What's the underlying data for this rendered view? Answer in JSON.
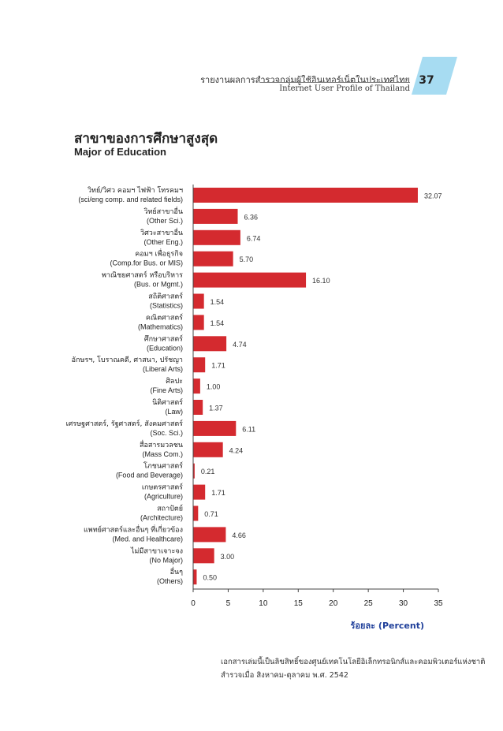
{
  "header": {
    "thai_title": "รายงานผลการสำรวจกลุ่มผู้ใช้อินเทอร์เน็ตในประเทศไทย",
    "english_title": "Internet User Profile of Thailand",
    "page_number": "37",
    "tab_color": "#a7dcf2"
  },
  "section": {
    "title_thai": "สาขาของการศึกษาสูงสุด",
    "title_english": "Major of Education"
  },
  "chart_data": {
    "type": "bar",
    "orientation": "horizontal",
    "categories": [
      {
        "th": "วิทย์/วิศว คอมฯ ไฟฟ้า โทรคมฯ",
        "en": "(sci/eng comp. and related fields)"
      },
      {
        "th": "วิทย์สาขาอื่น",
        "en": "(Other Sci.)"
      },
      {
        "th": "วิศวะสาขาอื่น",
        "en": "(Other Eng.)"
      },
      {
        "th": "คอมฯ เพื่อธุรกิจ",
        "en": "(Comp.for Bus. or MIS)"
      },
      {
        "th": "พาณิชยศาสตร์ หรือบริหาร",
        "en": "(Bus. or Mgmt.)"
      },
      {
        "th": "สถิติศาสตร์",
        "en": "(Statistics)"
      },
      {
        "th": "คณิตศาสตร์",
        "en": "(Mathematics)"
      },
      {
        "th": "ศึกษาศาสตร์",
        "en": "(Education)"
      },
      {
        "th": "อักษรฯ, โบราณคดี, ศาสนา, ปรัชญา",
        "en": "(Liberal Arts)"
      },
      {
        "th": "ศิลปะ",
        "en": "(Fine Arts)"
      },
      {
        "th": "นิติศาสตร์",
        "en": "(Law)"
      },
      {
        "th": "เศรษฐศาสตร์, รัฐศาสตร์, สังคมศาสตร์",
        "en": "(Soc. Sci.)"
      },
      {
        "th": "สื่อสารมวลชน",
        "en": "(Mass Com.)"
      },
      {
        "th": "โภชนศาสตร์",
        "en": "(Food and Beverage)"
      },
      {
        "th": "เกษตรศาสตร์",
        "en": "(Agriculture)"
      },
      {
        "th": "สถาปัตย์",
        "en": "(Architecture)"
      },
      {
        "th": "แพทย์ศาสตร์และอื่นๆ ที่เกี่ยวข้อง",
        "en": "(Med. and Healthcare)"
      },
      {
        "th": "ไม่มีสาขาเจาะจง",
        "en": "(No Major)"
      },
      {
        "th": "อื่นๆ",
        "en": "(Others)"
      }
    ],
    "values": [
      32.07,
      6.36,
      6.74,
      5.7,
      16.1,
      1.54,
      1.54,
      4.74,
      1.71,
      1.0,
      1.37,
      6.11,
      4.24,
      0.21,
      1.71,
      0.71,
      4.66,
      3.0,
      0.5
    ],
    "value_labels": [
      "32.07",
      "6.36",
      "6.74",
      "5.70",
      "16.10",
      "1.54",
      "1.54",
      "4.74",
      "1.71",
      "1.00",
      "1.37",
      "6.11",
      "4.24",
      "0.21",
      "1.71",
      "0.71",
      "4.66",
      "3.00",
      "0.50"
    ],
    "xlim": [
      0,
      35
    ],
    "xticks": [
      "0",
      "5",
      "10",
      "15",
      "20",
      "25",
      "30",
      "35"
    ],
    "xlabel": "ร้อยละ (Percent)",
    "bar_color": "#d42a2f",
    "xlabel_color": "#1f3f9a",
    "grid": false
  },
  "footnote": {
    "line1": "เอกสารเล่มนี้เป็นลิขสิทธิ์ของศูนย์เทคโนโลยีอิเล็กทรอนิกส์และคอมพิวเตอร์แห่งชาติ",
    "line2": "สำรวจเมื่อ สิงหาคม-ตุลาคม พ.ศ. 2542"
  }
}
